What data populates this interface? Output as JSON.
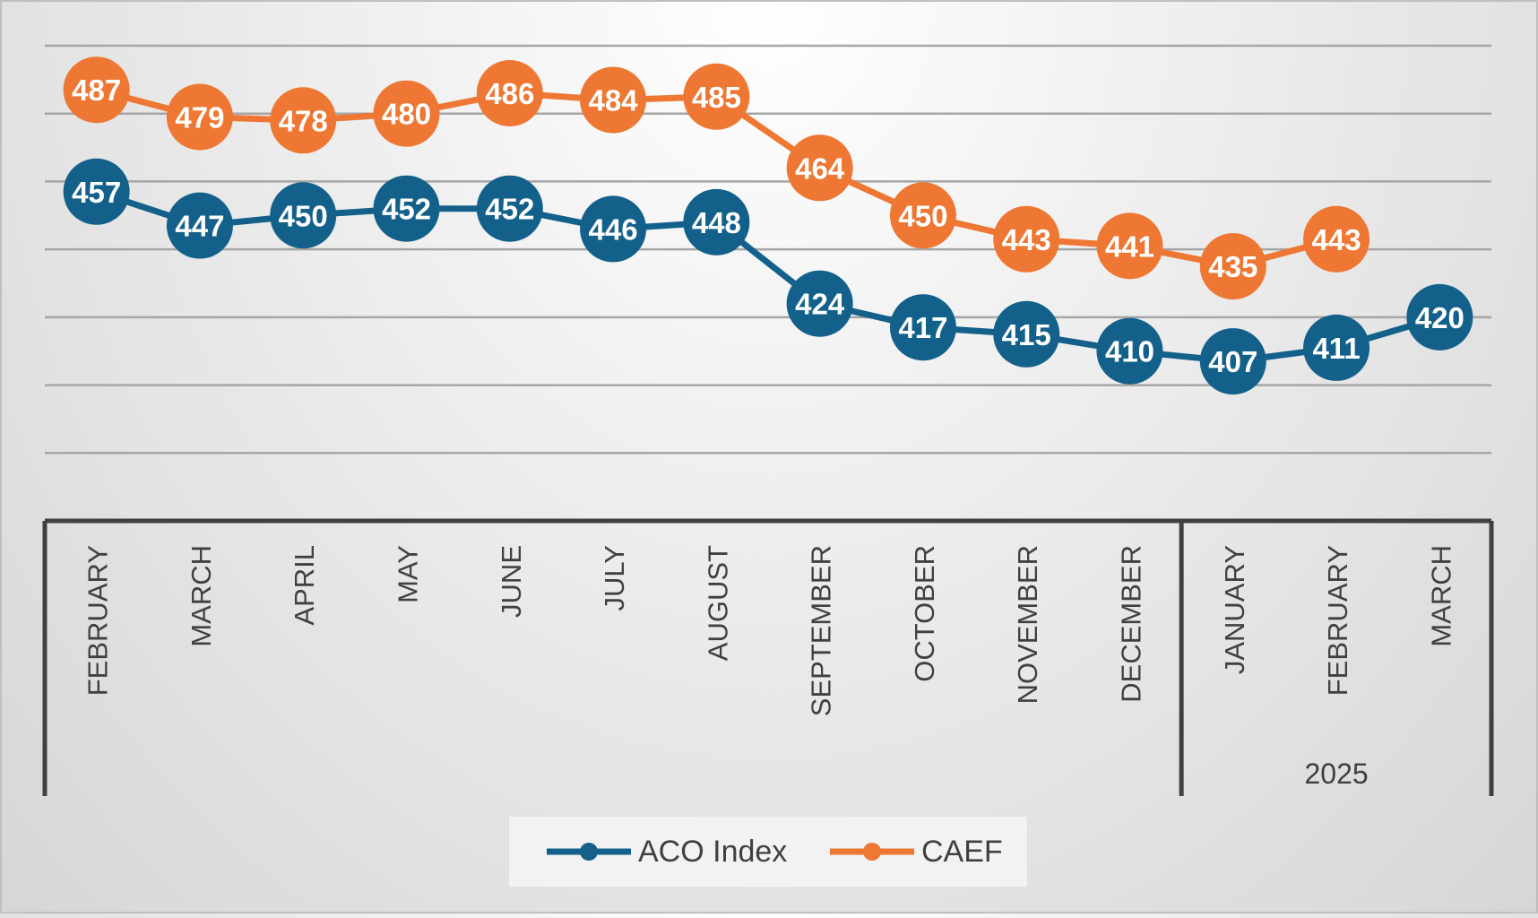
{
  "chart_data": {
    "type": "line",
    "title": "",
    "xlabel": "",
    "ylabel": "",
    "ylim": [
      360,
      500
    ],
    "grid": true,
    "categories": [
      "FEBRUARY",
      "MARCH",
      "APRIL",
      "MAY",
      "JUNE",
      "JULY",
      "AUGUST",
      "SEPTEMBER",
      "OCTOBER",
      "NOVEMBER",
      "DECEMBER",
      "JANUARY",
      "FEBRUARY",
      "MARCH"
    ],
    "groups": [
      {
        "label": "",
        "start": 0,
        "end": 10
      },
      {
        "label": "2025",
        "start": 11,
        "end": 13
      }
    ],
    "series": [
      {
        "name": "ACO Index",
        "color": "#13618a",
        "values": [
          457,
          447,
          450,
          452,
          452,
          446,
          448,
          424,
          417,
          415,
          410,
          407,
          411,
          420
        ]
      },
      {
        "name": "CAEF",
        "color": "#ee7733",
        "values": [
          487,
          479,
          478,
          480,
          486,
          484,
          485,
          464,
          450,
          443,
          441,
          435,
          443,
          null
        ]
      }
    ],
    "legend_position": "bottom"
  }
}
